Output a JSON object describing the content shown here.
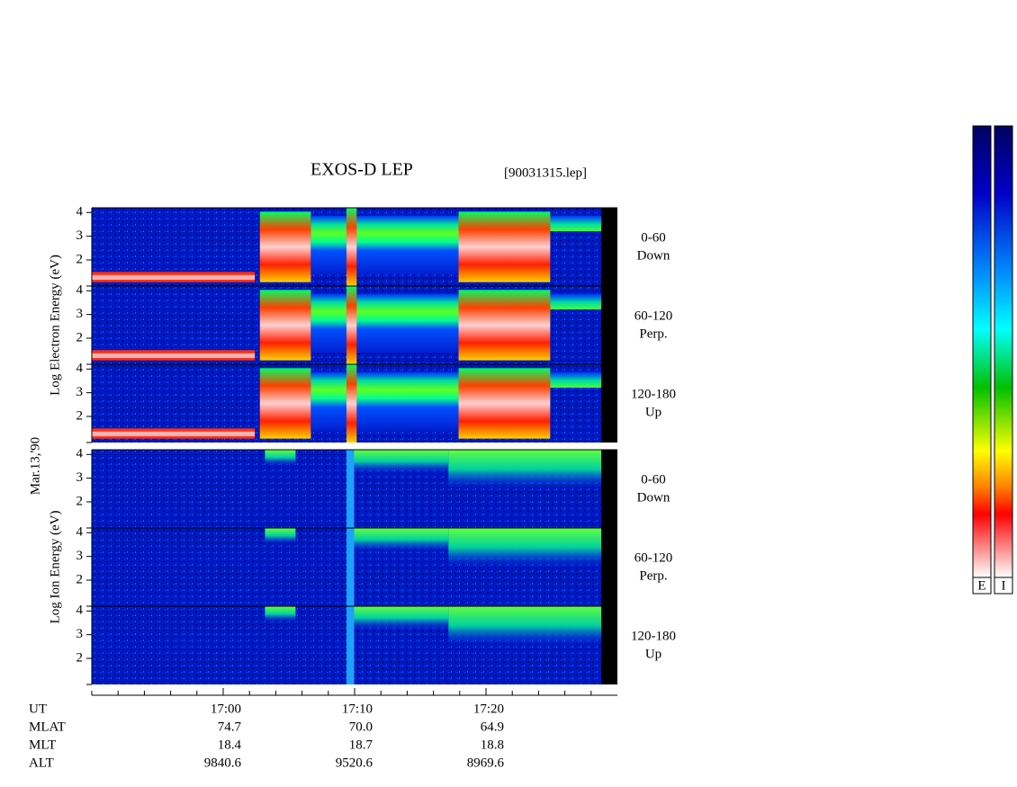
{
  "chart_data": {
    "type": "spectrogram",
    "title": "EXOS-D LEP",
    "file": "[90031315.lep]",
    "date": "Mar.13,'90",
    "ylim": [
      0.9,
      4.2
    ],
    "yticks": [
      2,
      3,
      4
    ],
    "xlim": [
      1010,
      1050
    ],
    "xticks": [
      {
        "value": 1020,
        "label": "17:00"
      },
      {
        "value": 1030,
        "label": "17:10"
      },
      {
        "value": 1040,
        "label": "17:20"
      }
    ],
    "xminorticks": [
      1010,
      1012,
      1014,
      1016,
      1018,
      1022,
      1024,
      1026,
      1028,
      1032,
      1034,
      1036,
      1038,
      1042,
      1044,
      1046,
      1048
    ],
    "groups": [
      {
        "ylabel": "Log Electron Energy (eV)",
        "species": "E",
        "panels": [
          {
            "label": "0-60",
            "sublabel": "Down"
          },
          {
            "label": "60-120",
            "sublabel": "Perp."
          },
          {
            "label": "120-180",
            "sublabel": "Up"
          }
        ]
      },
      {
        "ylabel": "Log Ion Energy (eV)",
        "species": "I",
        "panels": [
          {
            "label": "0-60",
            "sublabel": "Down"
          },
          {
            "label": "60-120",
            "sublabel": "Perp."
          },
          {
            "label": "120-180",
            "sublabel": "Up"
          }
        ]
      }
    ],
    "ephemeris": {
      "labels": [
        "UT",
        "MLAT",
        "MLT",
        "ALT"
      ],
      "rows": [
        [
          "74.7",
          "70.0",
          "64.9"
        ],
        [
          "18.4",
          "18.7",
          "18.8"
        ],
        [
          "9840.6",
          "9520.6",
          "8969.6"
        ]
      ]
    },
    "colorbar_labels": [
      "E",
      "I"
    ]
  }
}
